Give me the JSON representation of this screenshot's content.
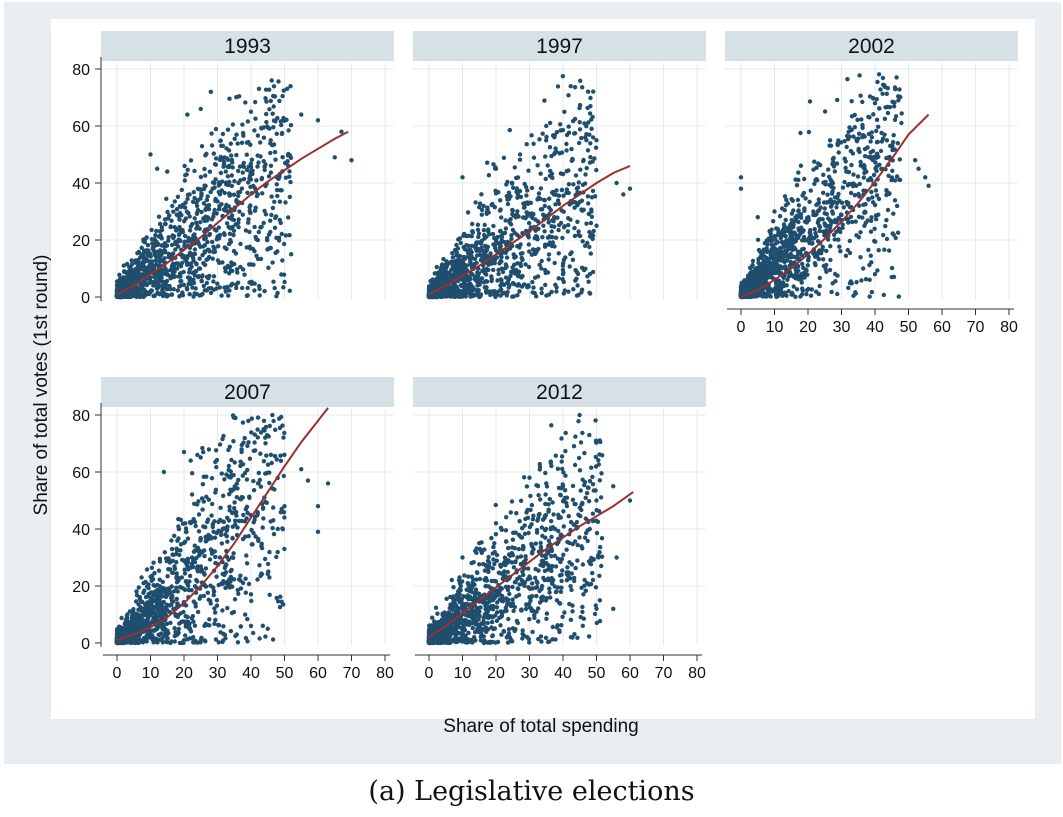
{
  "caption": "(a) Legislative elections",
  "chart_data": {
    "type": "scatter",
    "ylabel": "Share of total votes (1st round)",
    "xlabel": "Share of total spending",
    "xlim": [
      0,
      80
    ],
    "ylim": [
      0,
      80
    ],
    "xticks": [
      0,
      10,
      20,
      30,
      40,
      50,
      60,
      70,
      80
    ],
    "yticks": [
      0,
      20,
      40,
      60,
      80
    ],
    "grid": true,
    "colors": {
      "points": "#1f4e6e",
      "fit": "#9b2f2f",
      "strip": "#d6e0e7",
      "background": "#e8eef2",
      "panel": "#ffffff"
    },
    "panels": [
      {
        "title": "1993",
        "fit": [
          [
            0,
            1
          ],
          [
            5,
            4
          ],
          [
            10,
            8
          ],
          [
            15,
            12
          ],
          [
            20,
            16.5
          ],
          [
            25,
            21
          ],
          [
            30,
            26
          ],
          [
            35,
            31
          ],
          [
            40,
            36
          ],
          [
            45,
            40.5
          ],
          [
            50,
            44.5
          ],
          [
            55,
            48.5
          ],
          [
            60,
            52
          ],
          [
            65,
            55.5
          ],
          [
            69,
            58
          ]
        ],
        "cloud": {
          "n": 1400,
          "xmax": 52,
          "slope": 0.88,
          "curve": 0,
          "spread": 0.45,
          "extraMaxX": 70
        },
        "outliers": [
          [
            28,
            72
          ],
          [
            25,
            66
          ],
          [
            21,
            64
          ],
          [
            40,
            65
          ],
          [
            55,
            64
          ],
          [
            60,
            62
          ],
          [
            67,
            58
          ],
          [
            70,
            48
          ],
          [
            65,
            49
          ],
          [
            10,
            50
          ],
          [
            12,
            45
          ],
          [
            15,
            44
          ],
          [
            52,
            15
          ]
        ]
      },
      {
        "title": "1997",
        "fit": [
          [
            0,
            1
          ],
          [
            5,
            4
          ],
          [
            10,
            7.5
          ],
          [
            15,
            11
          ],
          [
            20,
            15
          ],
          [
            25,
            19
          ],
          [
            30,
            23
          ],
          [
            35,
            27.5
          ],
          [
            40,
            32
          ],
          [
            45,
            36
          ],
          [
            50,
            40
          ],
          [
            55,
            43.5
          ],
          [
            60,
            46
          ]
        ],
        "cloud": {
          "n": 1400,
          "xmax": 50,
          "slope": 0.78,
          "curve": 0,
          "spread": 0.5,
          "extraMaxX": 60
        },
        "outliers": [
          [
            35,
            60
          ],
          [
            49,
            56
          ],
          [
            50,
            55
          ],
          [
            56,
            40
          ],
          [
            58,
            36
          ],
          [
            60,
            38
          ],
          [
            50,
            25
          ],
          [
            10,
            42
          ],
          [
            20,
            45
          ],
          [
            40,
            8
          ],
          [
            27,
            2
          ]
        ]
      },
      {
        "title": "2002",
        "fit": [
          [
            0,
            0
          ],
          [
            5,
            2.5
          ],
          [
            10,
            6
          ],
          [
            15,
            10
          ],
          [
            20,
            15
          ],
          [
            25,
            20.5
          ],
          [
            30,
            26.5
          ],
          [
            35,
            33
          ],
          [
            40,
            40.5
          ],
          [
            45,
            48.5
          ],
          [
            50,
            57
          ],
          [
            56,
            64
          ]
        ],
        "cloud": {
          "n": 1400,
          "xmax": 48,
          "slope": 0.95,
          "curve": 0.006,
          "spread": 0.5,
          "extraMaxX": 56
        },
        "outliers": [
          [
            0,
            42
          ],
          [
            0,
            38
          ],
          [
            40,
            68
          ],
          [
            47,
            69
          ],
          [
            52,
            48
          ],
          [
            53,
            45
          ],
          [
            56,
            39
          ],
          [
            55,
            42
          ],
          [
            40,
            8
          ],
          [
            45,
            7
          ],
          [
            10,
            30
          ],
          [
            5,
            28
          ]
        ]
      },
      {
        "title": "2007",
        "fit": [
          [
            0,
            1
          ],
          [
            5,
            3
          ],
          [
            10,
            5.5
          ],
          [
            15,
            9
          ],
          [
            20,
            14
          ],
          [
            25,
            20
          ],
          [
            30,
            27
          ],
          [
            35,
            35
          ],
          [
            40,
            44
          ],
          [
            45,
            53
          ],
          [
            50,
            62
          ],
          [
            55,
            70.5
          ],
          [
            60,
            78
          ],
          [
            63,
            82.5
          ]
        ],
        "cloud": {
          "n": 1400,
          "xmax": 50,
          "slope": 0.75,
          "curve": 0.012,
          "spread": 0.55,
          "extraMaxX": 63
        },
        "outliers": [
          [
            55,
            61
          ],
          [
            57,
            57
          ],
          [
            60,
            48
          ],
          [
            60,
            39
          ],
          [
            63,
            56
          ],
          [
            50,
            48
          ],
          [
            48,
            40
          ],
          [
            14,
            60
          ],
          [
            20,
            67
          ],
          [
            24,
            66
          ],
          [
            22,
            64
          ],
          [
            40,
            6
          ],
          [
            45,
            5
          ],
          [
            10,
            15
          ]
        ]
      },
      {
        "title": "2012",
        "fit": [
          [
            0,
            2
          ],
          [
            5,
            6
          ],
          [
            10,
            10.5
          ],
          [
            15,
            15
          ],
          [
            20,
            19.5
          ],
          [
            25,
            24
          ],
          [
            30,
            28.5
          ],
          [
            35,
            33
          ],
          [
            40,
            37
          ],
          [
            45,
            41
          ],
          [
            50,
            44.5
          ],
          [
            55,
            48
          ],
          [
            61,
            53
          ]
        ],
        "cloud": {
          "n": 1400,
          "xmax": 52,
          "slope": 0.88,
          "curve": 0,
          "spread": 0.45,
          "extraMaxX": 61
        },
        "outliers": [
          [
            30,
            58
          ],
          [
            35,
            56
          ],
          [
            40,
            55
          ],
          [
            50,
            50
          ],
          [
            55,
            55
          ],
          [
            60,
            50
          ],
          [
            56,
            30
          ],
          [
            48,
            40
          ],
          [
            50,
            12
          ],
          [
            55,
            12
          ],
          [
            15,
            35
          ],
          [
            20,
            42
          ],
          [
            10,
            30
          ]
        ]
      }
    ]
  }
}
